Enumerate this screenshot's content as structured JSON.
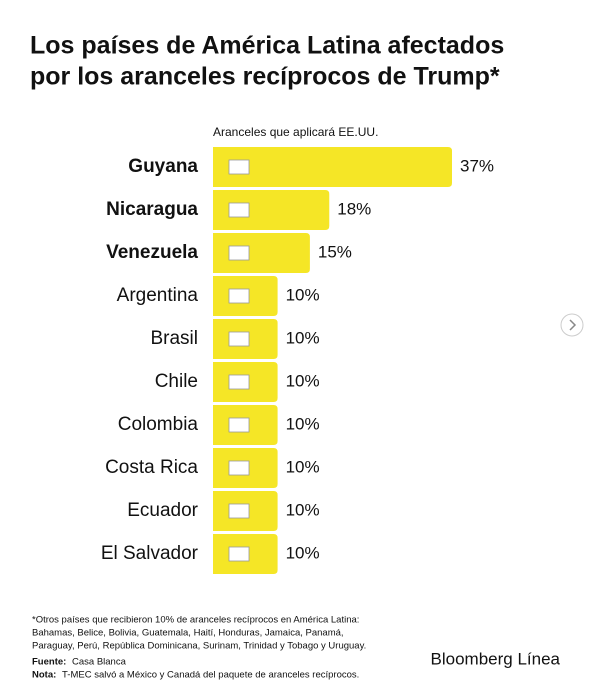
{
  "chart_data": {
    "type": "bar",
    "title": [
      "Los países de América Latina afectados",
      "por los aranceles recíprocos de Trump*"
    ],
    "subtitle": "Aranceles que aplicará EE.UU.",
    "categories": [
      "Guyana",
      "Nicaragua",
      "Venezuela",
      "Argentina",
      "Brasil",
      "Chile",
      "Colombia",
      "Costa Rica",
      "Ecuador",
      "El Salvador"
    ],
    "values": [
      37,
      18,
      15,
      10,
      10,
      10,
      10,
      10,
      10,
      10
    ],
    "value_labels": [
      "37%",
      "18%",
      "15%",
      "10%",
      "10%",
      "10%",
      "10%",
      "10%",
      "10%",
      "10%"
    ],
    "color": "#f5e626",
    "footnote": [
      "*Otros países que recibieron 10% de aranceles recíprocos en América Latina:",
      "Bahamas, Belice, Bolivia, Guatemala, Haití, Honduras, Jamaica, Panamá,",
      "Paraguay, Perú, República Dominicana, Surinam, Trinidad y Tobago y Uruguay."
    ],
    "source": {
      "label": "Fuente:",
      "text": "Casa Blanca"
    },
    "note": {
      "label": "Nota:",
      "text": "T-MEC salvó a México y Canadá del paquete de aranceles recíprocos."
    },
    "brand": "Bloomberg Línea"
  }
}
